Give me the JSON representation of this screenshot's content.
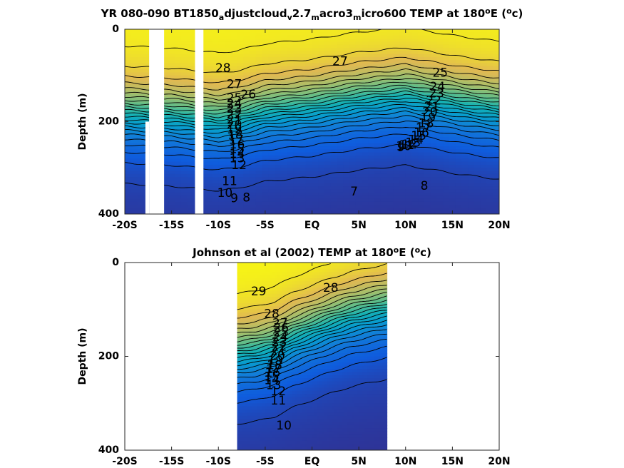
{
  "chart_data": [
    {
      "type": "heatmap",
      "title_parts": [
        {
          "t": "YR 080-090 BT1850"
        },
        {
          "t": "a",
          "sub": true
        },
        {
          "t": "djustcloud"
        },
        {
          "t": "v",
          "sub": true
        },
        {
          "t": "2.7"
        },
        {
          "t": "m",
          "sub": true
        },
        {
          "t": "acro3"
        },
        {
          "t": "m",
          "sub": true
        },
        {
          "t": "icro600 TEMP at 180"
        },
        {
          "t": "o",
          "sup": true
        },
        {
          "t": "E ("
        },
        {
          "t": "o",
          "sup": true
        },
        {
          "t": "c)"
        }
      ],
      "ylabel": "Depth (m)",
      "xlim": [
        -20,
        20
      ],
      "ylim": [
        0,
        400
      ],
      "y_reversed": true,
      "x_ticks": [
        -20,
        -15,
        -10,
        -5,
        0,
        5,
        10,
        15,
        20
      ],
      "x_tick_labels": [
        "-20S",
        "-15S",
        "-10S",
        "-5S",
        "EQ",
        "5N",
        "10N",
        "15N",
        "20N"
      ],
      "y_ticks": [
        0,
        200,
        400
      ],
      "y_tick_labels": [
        "0",
        "200",
        "400"
      ],
      "data_extent_lat": [
        -20,
        20
      ],
      "missing_lat_bands": [
        [
          -17.4,
          -15.8
        ],
        [
          -12.5,
          -11.6
        ]
      ],
      "missing_box": {
        "lat": [
          -17.8,
          -17.4
        ],
        "depth": [
          200,
          400
        ]
      },
      "warm_top_temp": 29.5,
      "deep_temp": 7,
      "thermocline_depth": [
        {
          "lat": -20,
          "depth": 180
        },
        {
          "lat": -15,
          "depth": 185
        },
        {
          "lat": -10,
          "depth": 195
        },
        {
          "lat": -8,
          "depth": 190
        },
        {
          "lat": -5,
          "depth": 175
        },
        {
          "lat": 0,
          "depth": 165
        },
        {
          "lat": 5,
          "depth": 150
        },
        {
          "lat": 10,
          "depth": 140
        },
        {
          "lat": 13,
          "depth": 150
        },
        {
          "lat": 16,
          "depth": 160
        },
        {
          "lat": 20,
          "depth": 170
        }
      ],
      "contour_labels": [
        {
          "text": "28",
          "lat": -9.5,
          "depth": 85
        },
        {
          "text": "27",
          "lat": -8.3,
          "depth": 120
        },
        {
          "text": "26",
          "lat": -6.8,
          "depth": 142
        },
        {
          "text": "25",
          "lat": -8.3,
          "depth": 150
        },
        {
          "text": "24",
          "lat": -8.3,
          "depth": 162
        },
        {
          "text": "23",
          "lat": -8.3,
          "depth": 173
        },
        {
          "text": "22",
          "lat": -8.3,
          "depth": 185
        },
        {
          "text": "21",
          "lat": -8.3,
          "depth": 197
        },
        {
          "text": "20",
          "lat": -8.3,
          "depth": 208
        },
        {
          "text": "19",
          "lat": -8.3,
          "depth": 218
        },
        {
          "text": "18",
          "lat": -8.2,
          "depth": 229
        },
        {
          "text": "17",
          "lat": -8.1,
          "depth": 240
        },
        {
          "text": "16",
          "lat": -8.0,
          "depth": 250
        },
        {
          "text": "15",
          "lat": -8.0,
          "depth": 260
        },
        {
          "text": "14",
          "lat": -8.0,
          "depth": 270
        },
        {
          "text": "13",
          "lat": -8.0,
          "depth": 280
        },
        {
          "text": "12",
          "lat": -7.8,
          "depth": 295
        },
        {
          "text": "11",
          "lat": -8.8,
          "depth": 330
        },
        {
          "text": "10",
          "lat": -9.3,
          "depth": 355
        },
        {
          "text": "9",
          "lat": -8.3,
          "depth": 367
        },
        {
          "text": "8",
          "lat": -7.0,
          "depth": 365
        },
        {
          "text": "7",
          "lat": 4.5,
          "depth": 352
        },
        {
          "text": "8",
          "lat": 12.0,
          "depth": 340
        },
        {
          "text": "27",
          "lat": 3.0,
          "depth": 70
        },
        {
          "text": "25",
          "lat": 13.7,
          "depth": 95
        },
        {
          "text": "24",
          "lat": 13.4,
          "depth": 125
        },
        {
          "text": "23",
          "lat": 13.3,
          "depth": 140
        },
        {
          "text": "22",
          "lat": 13.0,
          "depth": 155
        },
        {
          "text": "21",
          "lat": 12.8,
          "depth": 168
        },
        {
          "text": "20",
          "lat": 12.6,
          "depth": 180
        },
        {
          "text": "19",
          "lat": 12.4,
          "depth": 192
        },
        {
          "text": "18",
          "lat": 12.2,
          "depth": 205
        },
        {
          "text": "17",
          "lat": 11.9,
          "depth": 215
        },
        {
          "text": "16",
          "lat": 11.7,
          "depth": 225
        },
        {
          "text": "15",
          "lat": 11.4,
          "depth": 232
        },
        {
          "text": "14",
          "lat": 11.1,
          "depth": 240
        },
        {
          "text": "13",
          "lat": 10.8,
          "depth": 246
        },
        {
          "text": "12",
          "lat": 10.4,
          "depth": 250
        },
        {
          "text": "11",
          "lat": 10.1,
          "depth": 252
        },
        {
          "text": "10",
          "lat": 9.8,
          "depth": 254
        },
        {
          "text": "9",
          "lat": 9.5,
          "depth": 256
        }
      ]
    },
    {
      "type": "heatmap",
      "title_parts": [
        {
          "t": "Johnson et al (2002) TEMP at 180"
        },
        {
          "t": "o",
          "sup": true
        },
        {
          "t": "E ("
        },
        {
          "t": "o",
          "sup": true
        },
        {
          "t": "c)"
        }
      ],
      "ylabel": "Depth (m)",
      "xlim": [
        -20,
        20
      ],
      "ylim": [
        0,
        400
      ],
      "y_reversed": true,
      "x_ticks": [
        -20,
        -15,
        -10,
        -5,
        0,
        5,
        10,
        15,
        20
      ],
      "x_tick_labels": [
        "-20S",
        "-15S",
        "-10S",
        "-5S",
        "EQ",
        "5N",
        "10N",
        "15N",
        "20N"
      ],
      "y_ticks": [
        0,
        200,
        400
      ],
      "y_tick_labels": [
        "0",
        "200",
        "400"
      ],
      "data_extent_lat": [
        -8,
        8
      ],
      "missing_lat_bands": [],
      "warm_top_temp": 29.8,
      "deep_temp": 8,
      "thermocline_depth": [
        {
          "lat": -8,
          "depth": 190
        },
        {
          "lat": -6,
          "depth": 185
        },
        {
          "lat": -4,
          "depth": 175
        },
        {
          "lat": -2,
          "depth": 155
        },
        {
          "lat": 0,
          "depth": 140
        },
        {
          "lat": 2,
          "depth": 125
        },
        {
          "lat": 4,
          "depth": 112
        },
        {
          "lat": 6,
          "depth": 103
        },
        {
          "lat": 8,
          "depth": 95
        }
      ],
      "contour_labels": [
        {
          "text": "29",
          "lat": -5.7,
          "depth": 62
        },
        {
          "text": "28",
          "lat": 2.0,
          "depth": 55
        },
        {
          "text": "28",
          "lat": -4.3,
          "depth": 110
        },
        {
          "text": "27",
          "lat": -3.4,
          "depth": 130
        },
        {
          "text": "26",
          "lat": -3.3,
          "depth": 140
        },
        {
          "text": "25",
          "lat": -3.3,
          "depth": 150
        },
        {
          "text": "24",
          "lat": -3.4,
          "depth": 160
        },
        {
          "text": "23",
          "lat": -3.5,
          "depth": 170
        },
        {
          "text": "22",
          "lat": -3.5,
          "depth": 180
        },
        {
          "text": "21",
          "lat": -3.6,
          "depth": 190
        },
        {
          "text": "20",
          "lat": -3.7,
          "depth": 200
        },
        {
          "text": "19",
          "lat": -3.9,
          "depth": 210
        },
        {
          "text": "18",
          "lat": -4.0,
          "depth": 220
        },
        {
          "text": "17",
          "lat": -4.1,
          "depth": 228
        },
        {
          "text": "16",
          "lat": -4.2,
          "depth": 236
        },
        {
          "text": "15",
          "lat": -4.3,
          "depth": 244
        },
        {
          "text": "14",
          "lat": -4.3,
          "depth": 252
        },
        {
          "text": "13",
          "lat": -4.1,
          "depth": 262
        },
        {
          "text": "12",
          "lat": -3.6,
          "depth": 275
        },
        {
          "text": "11",
          "lat": -3.6,
          "depth": 295
        },
        {
          "text": "10",
          "lat": -3.0,
          "depth": 348
        }
      ]
    }
  ]
}
